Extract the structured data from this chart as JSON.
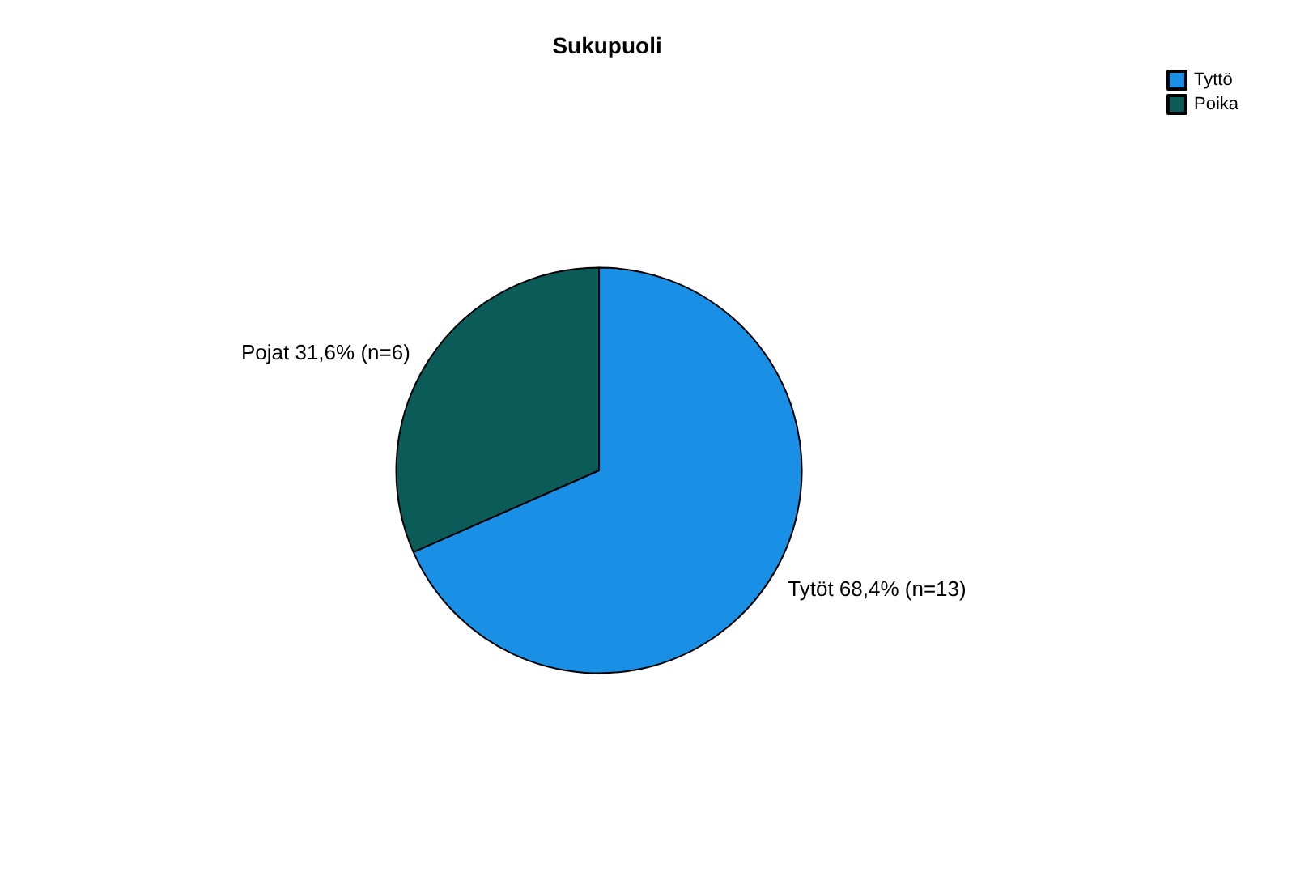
{
  "chart_data": {
    "type": "pie",
    "title": "Sukupuoli",
    "categories": [
      "Tyttö",
      "Poika"
    ],
    "values": [
      68.4,
      31.6
    ],
    "colors": [
      "#1a8fe6",
      "#0b5b58"
    ],
    "value_labels": [
      "Tytöt 68,4% (n=13)",
      "Pojat 31,6% (n=6)"
    ],
    "legend": "top right"
  }
}
